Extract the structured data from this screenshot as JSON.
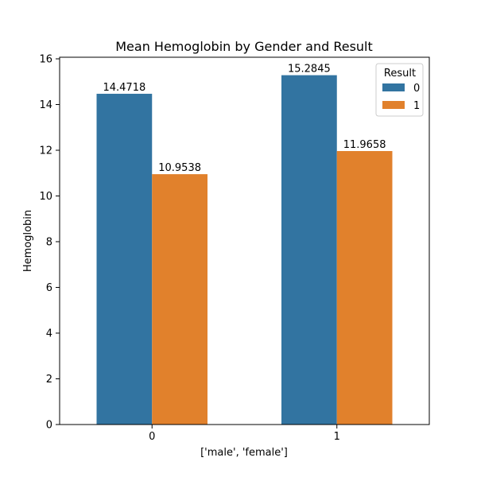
{
  "chart_data": {
    "type": "bar",
    "title": "Mean Hemoglobin by Gender and Result",
    "xlabel": "['male', 'female']",
    "ylabel": "Hemoglobin",
    "categories": [
      "0",
      "1"
    ],
    "series": [
      {
        "name": "0",
        "values": [
          14.4718,
          15.2845
        ],
        "color": "#3274a1"
      },
      {
        "name": "1",
        "values": [
          10.9538,
          11.9658
        ],
        "color": "#e1812c"
      }
    ],
    "ylim": [
      0,
      16.07
    ],
    "yticks": [
      0,
      2,
      4,
      6,
      8,
      10,
      12,
      14,
      16
    ],
    "bar_labels": true,
    "grid": false,
    "legend": {
      "title": "Result",
      "placement": "top-right"
    }
  }
}
